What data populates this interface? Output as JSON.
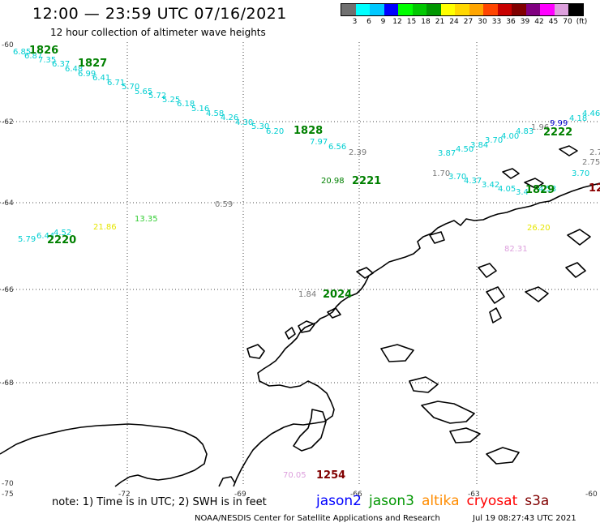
{
  "header": {
    "title": "12:00 — 23:59 UTC 07/16/2021",
    "subtitle": "12 hour collection of altimeter wave heights"
  },
  "legend": {
    "colors": [
      "#707070",
      "#00ffff",
      "#00c8ff",
      "#0000ff",
      "#00ff00",
      "#00c800",
      "#009600",
      "#ffff00",
      "#ffd700",
      "#ffa500",
      "#ff4500",
      "#c80000",
      "#800000",
      "#800080",
      "#ff00ff",
      "#dda0dd",
      "#000000"
    ],
    "labels": [
      "3",
      "6",
      "9",
      "12",
      "15",
      "18",
      "21",
      "24",
      "27",
      "30",
      "33",
      "36",
      "39",
      "42",
      "45",
      "70",
      "(ft)"
    ]
  },
  "map": {
    "lat_ticks": [
      "-60",
      "-62",
      "-64",
      "-66",
      "-68",
      "-70"
    ],
    "lon_ticks": [
      "-75",
      "-72",
      "-69",
      "-66",
      "-63",
      "-60"
    ],
    "observations": [
      {
        "v": "6.85",
        "c": "#00ced1"
      },
      {
        "v": "6.87",
        "c": "#00ced1"
      },
      {
        "v": "7.35",
        "c": "#00ced1"
      },
      {
        "v": "6.37",
        "c": "#00ced1"
      },
      {
        "v": "6.48",
        "c": "#00ced1"
      },
      {
        "v": "6.99",
        "c": "#00ced1"
      },
      {
        "v": "6.41",
        "c": "#00ced1"
      },
      {
        "v": "6.71",
        "c": "#00ced1"
      },
      {
        "v": "5.70",
        "c": "#00ced1"
      },
      {
        "v": "5.65",
        "c": "#00ced1"
      },
      {
        "v": "5.72",
        "c": "#00ced1"
      },
      {
        "v": "5.25",
        "c": "#00ced1"
      },
      {
        "v": "6.18",
        "c": "#00ced1"
      },
      {
        "v": "5.16",
        "c": "#00ced1"
      },
      {
        "v": "4.58",
        "c": "#00ced1"
      },
      {
        "v": "4.26",
        "c": "#00ced1"
      },
      {
        "v": "4.30",
        "c": "#00ced1"
      },
      {
        "v": "5.30",
        "c": "#00ced1"
      },
      {
        "v": "6.20",
        "c": "#00ced1"
      },
      {
        "v": "7.97",
        "c": "#00ced1"
      },
      {
        "v": "6.56",
        "c": "#00ced1"
      },
      {
        "v": "2.39",
        "c": "#777777"
      },
      {
        "v": "20.98",
        "c": "#008000"
      },
      {
        "v": "3.87",
        "c": "#00ced1"
      },
      {
        "v": "4.50",
        "c": "#00ced1"
      },
      {
        "v": "3.84",
        "c": "#00ced1"
      },
      {
        "v": "3.70",
        "c": "#00ced1"
      },
      {
        "v": "4.00",
        "c": "#00ced1"
      },
      {
        "v": "4.83",
        "c": "#00ced1"
      },
      {
        "v": "1.96",
        "c": "#777777"
      },
      {
        "v": "9.99",
        "c": "#0000cd"
      },
      {
        "v": "4.18",
        "c": "#00ced1"
      },
      {
        "v": "4.46",
        "c": "#00ced1"
      },
      {
        "v": "2.7",
        "c": "#777777"
      },
      {
        "v": "2.75",
        "c": "#777777"
      },
      {
        "v": "3.70",
        "c": "#00ced1"
      },
      {
        "v": "1.70",
        "c": "#777777"
      },
      {
        "v": "3.70",
        "c": "#00ced1"
      },
      {
        "v": "4.37",
        "c": "#00ced1"
      },
      {
        "v": "3.42",
        "c": "#00ced1"
      },
      {
        "v": "4.05",
        "c": "#00ced1"
      },
      {
        "v": "3.4",
        "c": "#00ced1"
      },
      {
        "v": "4.53",
        "c": "#00ced1"
      },
      {
        "v": "0.59",
        "c": "#777777"
      },
      {
        "v": "21.86",
        "c": "#e6e600"
      },
      {
        "v": "13.35",
        "c": "#32cd32"
      },
      {
        "v": "5.79",
        "c": "#00ced1"
      },
      {
        "v": "6.44",
        "c": "#00ced1"
      },
      {
        "v": "4.52",
        "c": "#00ced1"
      },
      {
        "v": "1.84",
        "c": "#777777"
      },
      {
        "v": "82.31",
        "c": "#dda0dd"
      },
      {
        "v": "70.05",
        "c": "#dda0dd"
      },
      {
        "v": "26.20",
        "c": "#e6e600"
      }
    ],
    "pass_labels": [
      {
        "t": "1826",
        "c": "#008000"
      },
      {
        "t": "1827",
        "c": "#008000"
      },
      {
        "t": "1828",
        "c": "#008000"
      },
      {
        "t": "2221",
        "c": "#008000"
      },
      {
        "t": "2222",
        "c": "#008000"
      },
      {
        "t": "1829",
        "c": "#008000"
      },
      {
        "t": "12",
        "c": "#8b0000"
      },
      {
        "t": "2220",
        "c": "#008000"
      },
      {
        "t": "2024",
        "c": "#008000"
      },
      {
        "t": "1254",
        "c": "#800000"
      }
    ]
  },
  "footer": {
    "note": "note:  1) Time is in UTC; 2) SWH is in feet",
    "satellites": [
      {
        "name": "jason2",
        "color": "#0000ff"
      },
      {
        "name": "jason3",
        "color": "#009600"
      },
      {
        "name": "altika",
        "color": "#ff8c00"
      },
      {
        "name": "cryosat",
        "color": "#ff0000"
      },
      {
        "name": "s3a",
        "color": "#800000"
      }
    ],
    "credit": "NOAA/NESDIS Center for Satellite Applications and Research",
    "timestamp": "Jul 19 08:27:43 UTC 2021"
  }
}
